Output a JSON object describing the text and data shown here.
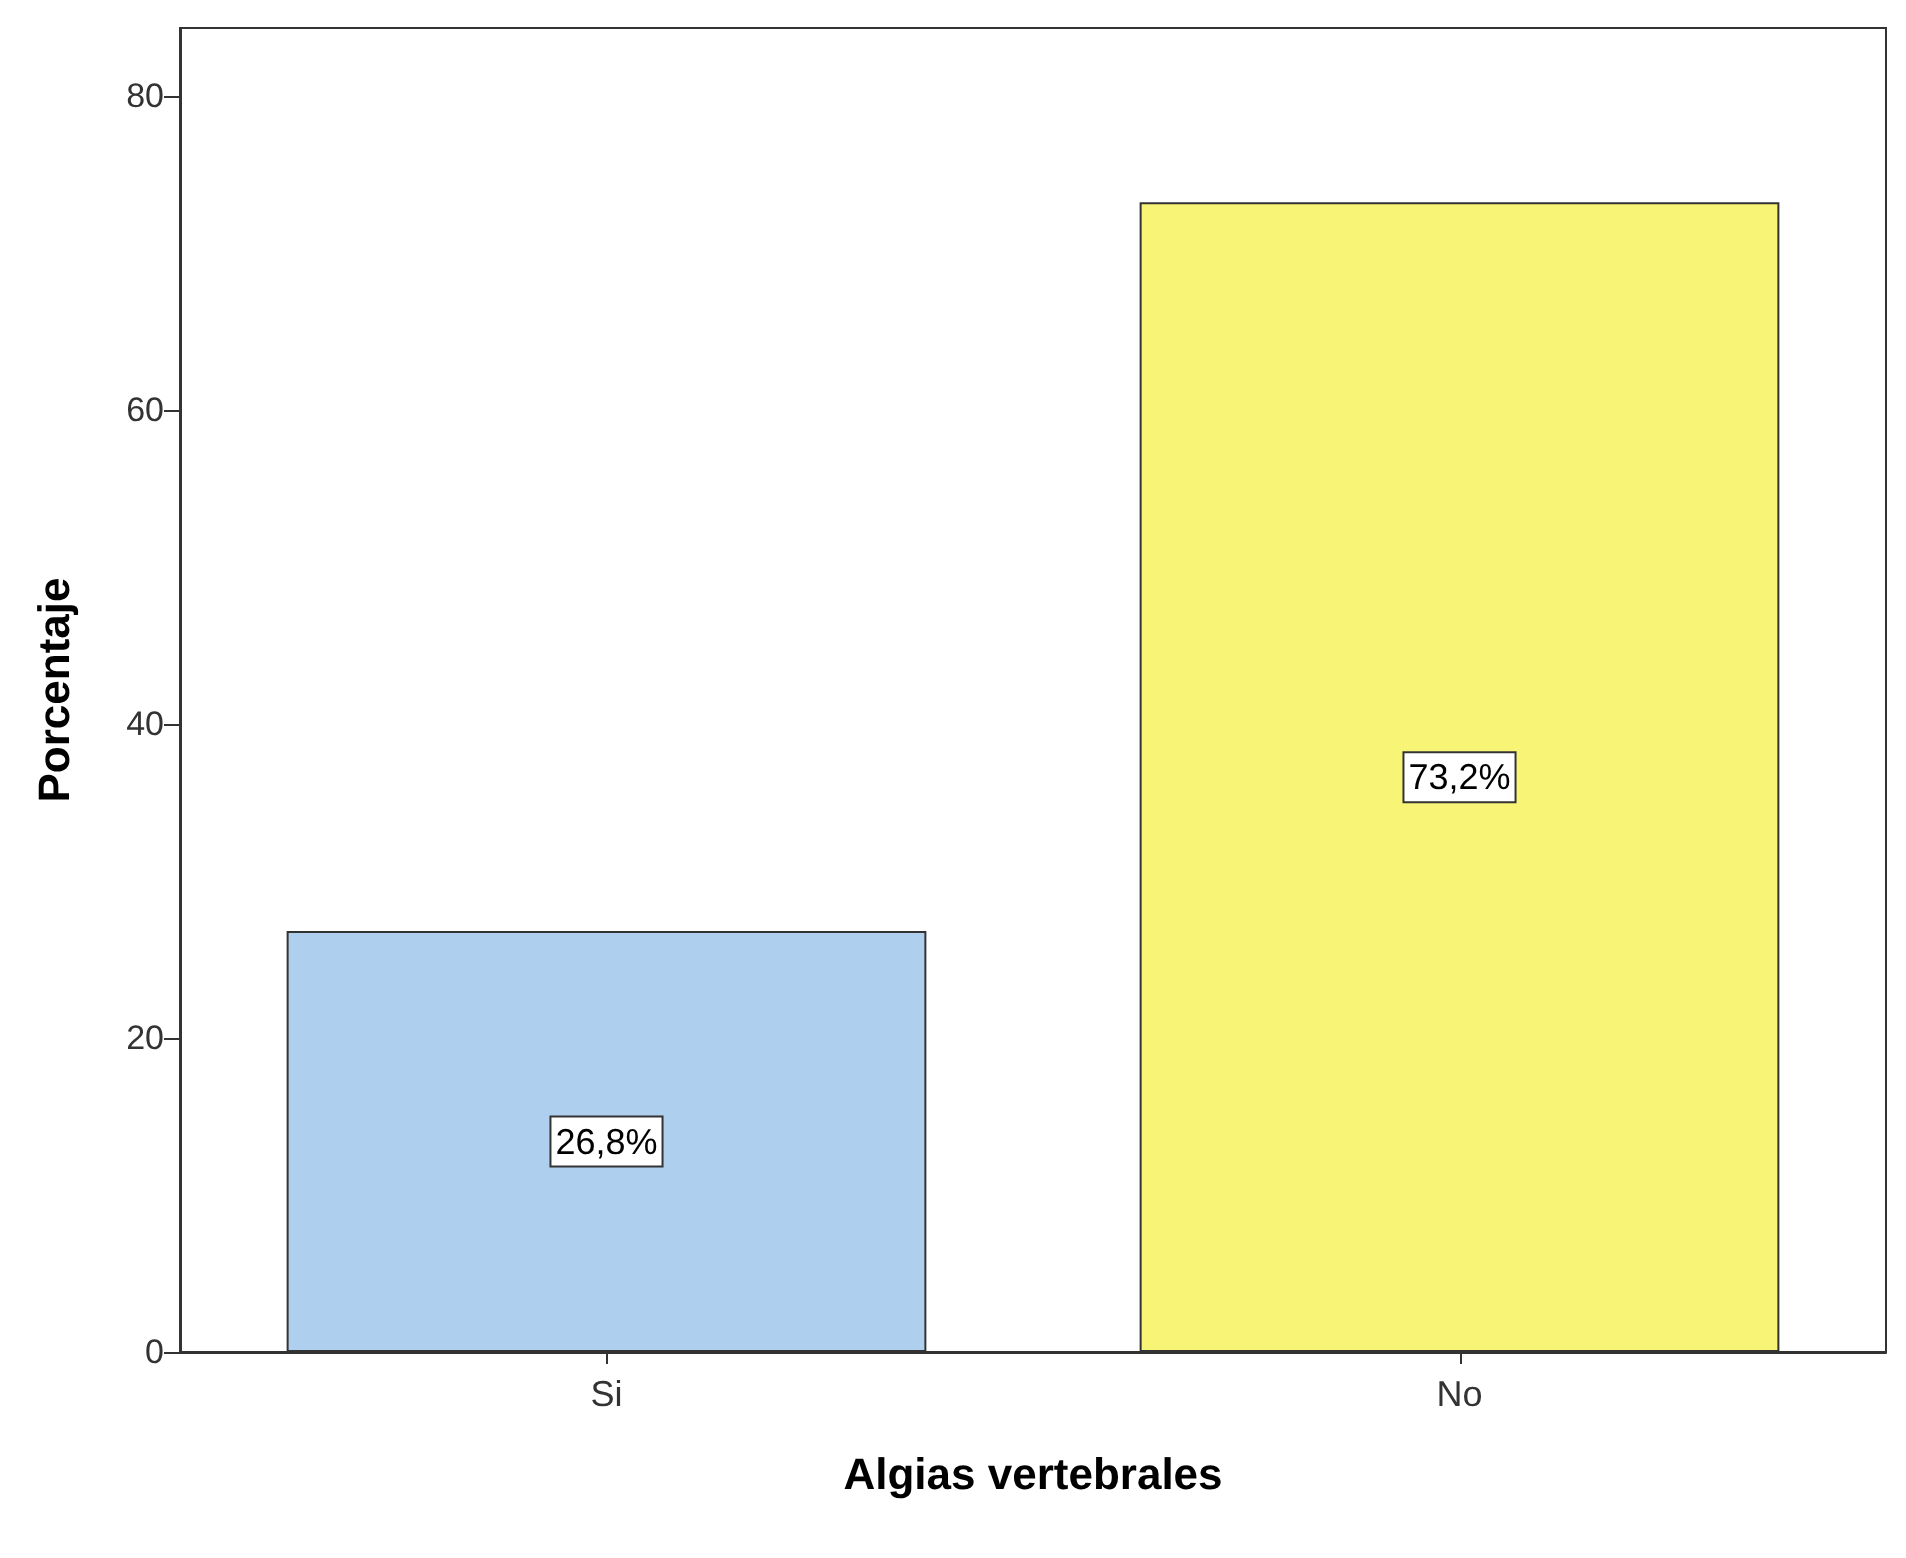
{
  "chart_data": {
    "type": "bar",
    "xlabel": "Algias vertebrales",
    "ylabel": "Porcentaje",
    "categories": [
      "Si",
      "No"
    ],
    "values": [
      26.8,
      73.2
    ],
    "colors": [
      "#aecfee",
      "#f8f576"
    ],
    "value_labels": [
      "26,8%",
      "73,2%"
    ],
    "ylim": [
      0,
      84.3
    ],
    "yticks": [
      0,
      20,
      40,
      60,
      80
    ],
    "grid": false
  }
}
